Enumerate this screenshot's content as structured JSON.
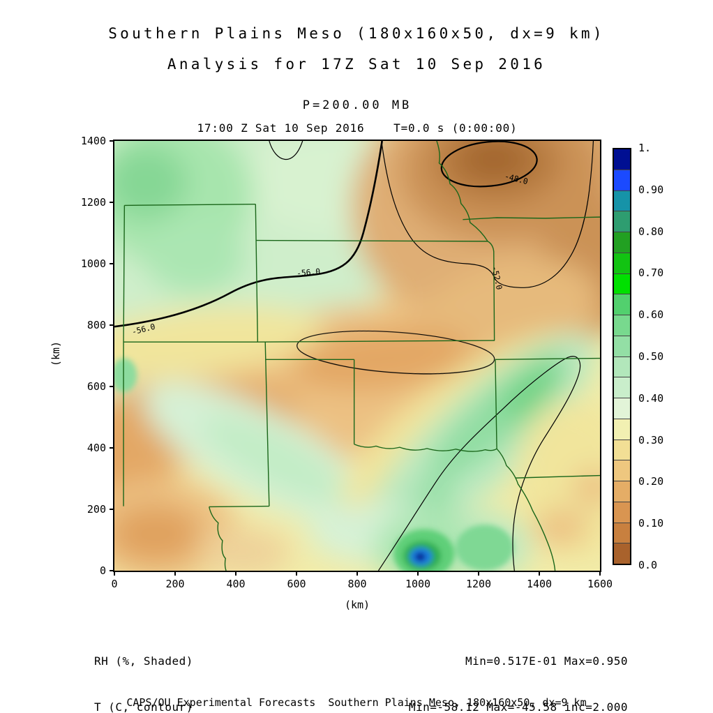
{
  "header": {
    "title_line1": "Southern Plains Meso (180x160x50, dx=9 km)",
    "title_line2": "Analysis for 17Z Sat 10 Sep 2016"
  },
  "plot": {
    "pressure_label": "P=200.00 MB",
    "time_label": "17:00 Z Sat 10 Sep 2016    T=0.0 s (0:00:00)",
    "xlabel": "(km)",
    "ylabel": "(km)"
  },
  "legend": {
    "shaded": "RH (%, Shaded)",
    "contour": "T (C, contour)",
    "shaded_stats": "Min=0.517E-01 Max=0.950",
    "contour_stats": "Min=-58.12 Max=-45.58 inc=2.000"
  },
  "footer": {
    "text": "CAPS/OU Experimental Forecasts  Southern Plains Meso, 180x160x50, dx=9 km"
  },
  "chart_data": {
    "type": "heatmap",
    "title": "Southern Plains Meso (180x160x50, dx=9 km)",
    "subtitle": "Analysis for 17Z Sat 10 Sep 2016",
    "level": "P=200.00 MB",
    "valid_time": "17:00 Z Sat 10 Sep 2016",
    "forecast_offset": "T=0.0 s (0:00:00)",
    "shaded_field": {
      "name": "RH",
      "units": "%",
      "min": 0.0517,
      "max": 0.95
    },
    "contour_field": {
      "name": "T",
      "units": "C",
      "min": -58.12,
      "max": -45.58,
      "interval": 2.0
    },
    "xlabel": "(km)",
    "ylabel": "(km)",
    "xlim": [
      0,
      1600
    ],
    "ylim": [
      0,
      1400
    ],
    "x_ticks": [
      0,
      200,
      400,
      600,
      800,
      1000,
      1200,
      1400,
      1600
    ],
    "y_ticks": [
      0,
      200,
      400,
      600,
      800,
      1000,
      1200,
      1400
    ],
    "grid": false,
    "contour_labels": [
      "-56.0",
      "-56.0",
      "-52.0",
      "-48.0"
    ],
    "notable_features": [
      {
        "feature": "RH maximum 0.950 (blue core) near x=1030 km, y=50 km"
      },
      {
        "feature": "Dry (brown) region RH near 0.05 in northeast corner inside -48.0 contour"
      },
      {
        "feature": "Moist green band from southeast Texas northeastward across Arkansas"
      },
      {
        "feature": "Moist green region over Colorado / northern New Mexico"
      }
    ],
    "colorbar": {
      "ticks": [
        "1.",
        "0.90",
        "0.80",
        "0.70",
        "0.60",
        "0.50",
        "0.40",
        "0.30",
        "0.20",
        "0.10",
        "0.0"
      ],
      "cells": [
        {
          "range": "0.95-1.00",
          "color": "#000f92"
        },
        {
          "range": "0.90-0.95",
          "color": "#1b4aff"
        },
        {
          "range": "0.85-0.90",
          "color": "#1693a8"
        },
        {
          "range": "0.80-0.85",
          "color": "#2e9d70"
        },
        {
          "range": "0.75-0.80",
          "color": "#22a022"
        },
        {
          "range": "0.70-0.75",
          "color": "#12c312"
        },
        {
          "range": "0.65-0.70",
          "color": "#00e000"
        },
        {
          "range": "0.60-0.65",
          "color": "#52d06e"
        },
        {
          "range": "0.55-0.60",
          "color": "#78d98e"
        },
        {
          "range": "0.50-0.55",
          "color": "#93dfa5"
        },
        {
          "range": "0.45-0.50",
          "color": "#b2e7bb"
        },
        {
          "range": "0.40-0.45",
          "color": "#c9eecb"
        },
        {
          "range": "0.35-0.40",
          "color": "#e2f4d8"
        },
        {
          "range": "0.30-0.35",
          "color": "#f2f0b2"
        },
        {
          "range": "0.25-0.30",
          "color": "#f2df95"
        },
        {
          "range": "0.20-0.25",
          "color": "#eec77f"
        },
        {
          "range": "0.15-0.20",
          "color": "#e5ad66"
        },
        {
          "range": "0.10-0.15",
          "color": "#d99551"
        },
        {
          "range": "0.05-0.10",
          "color": "#c8803f"
        },
        {
          "range": "0.00-0.05",
          "color": "#a9622c"
        }
      ]
    },
    "colors": {
      "state_border": "#1a661a",
      "contour": "#000000",
      "frame": "#000000"
    }
  }
}
